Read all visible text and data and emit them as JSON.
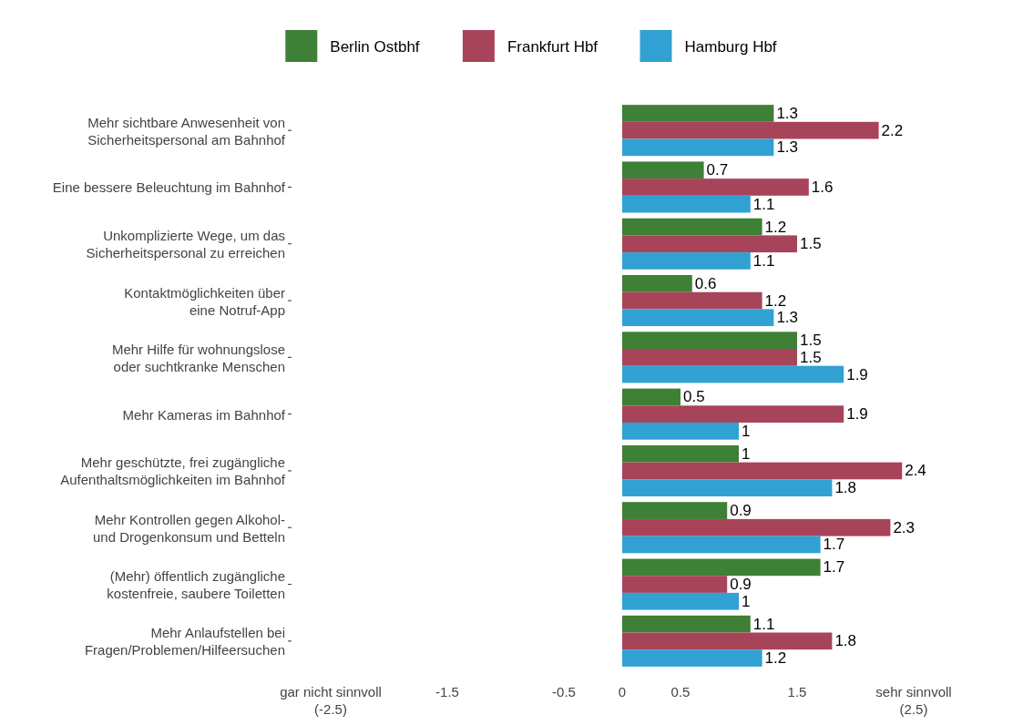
{
  "chart_data": {
    "type": "bar",
    "orientation": "horizontal",
    "categories": [
      "Mehr sichtbare Anwesenheit von\nSicherheitspersonal am Bahnhof",
      "Eine bessere Beleuchtung im Bahnhof",
      "Unkomplizierte Wege, um das\nSicherheitspersonal zu erreichen",
      "Kontaktmöglichkeiten über\neine Notruf-App",
      "Mehr Hilfe für wohnungslose\noder suchtkranke Menschen",
      "Mehr Kameras im Bahnhof",
      "Mehr geschützte, frei zugängliche\nAufenthaltsmöglichkeiten im Bahnhof",
      "Mehr Kontrollen gegen Alkohol-\nund Drogenkonsum und Betteln",
      "(Mehr) öffentlich zugängliche\nkostenfreie, saubere Toiletten",
      "Mehr Anlaufstellen bei\nFragen/Problemen/Hilfeersuchen"
    ],
    "series": [
      {
        "name": "Berlin Ostbhf",
        "color": "#3e8035",
        "values": [
          1.3,
          0.7,
          1.2,
          0.6,
          1.5,
          0.5,
          1,
          0.9,
          1.7,
          1.1
        ]
      },
      {
        "name": "Frankfurt Hbf",
        "color": "#a8445a",
        "values": [
          2.2,
          1.6,
          1.5,
          1.2,
          1.5,
          1.9,
          2.4,
          2.3,
          0.9,
          1.8
        ]
      },
      {
        "name": "Hamburg Hbf",
        "color": "#31a1d4",
        "values": [
          1.3,
          1.1,
          1.1,
          1.3,
          1.9,
          1,
          1.8,
          1.7,
          1,
          1.2
        ]
      }
    ],
    "xlim": [
      -2.5,
      2.5
    ],
    "xticks": [
      {
        "value": -2.5,
        "label": "gar nicht sinnvoll\n(-2.5)"
      },
      -1.5,
      -0.5,
      0,
      0.5,
      1.5,
      {
        "value": 2.5,
        "label": "sehr sinnvoll\n(2.5)"
      }
    ],
    "data_labels": true,
    "legend": "top",
    "grid": false
  }
}
